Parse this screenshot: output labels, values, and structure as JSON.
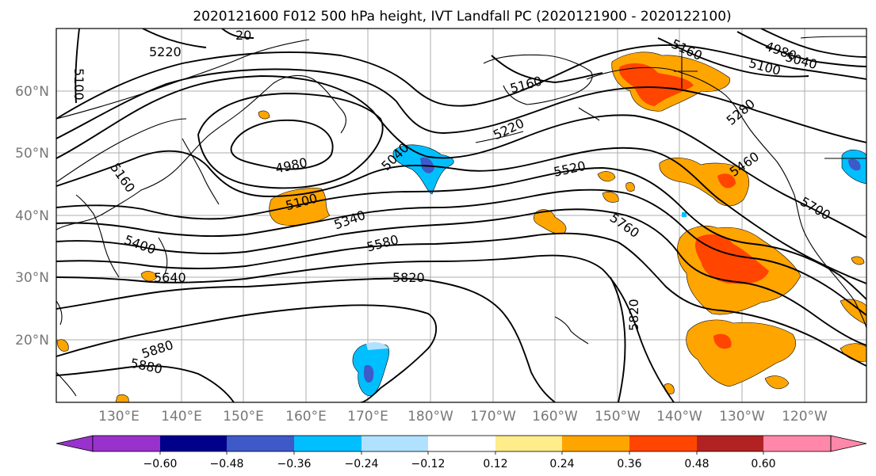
{
  "title": "2020121600 F012 500 hPa height, IVT Landfall PC (2020121900 - 2020122100)",
  "map": {
    "lon_ticks": [
      "130°E",
      "140°E",
      "150°E",
      "160°E",
      "170°E",
      "180°W",
      "170°W",
      "160°W",
      "150°W",
      "140°W",
      "130°W",
      "120°W"
    ],
    "lat_ticks": [
      "60°N",
      "50°N",
      "40°N",
      "30°N",
      "20°N"
    ],
    "contour_labels": [
      "5220",
      "5100",
      "5160",
      "4980",
      "5100",
      "5040",
      "5160",
      "5220",
      "5520",
      "5340",
      "5400",
      "5580",
      "5640",
      "5820",
      "5880",
      "5880",
      "5760",
      "5820",
      "5460",
      "5280",
      "5160",
      "5100",
      "5040",
      "4980",
      "5700",
      "20"
    ],
    "colors": {
      "neg_max": "#9932cc",
      "neg_dark": "#00008b",
      "neg_mid": "#3d5ac8",
      "neg_light": "#00bfff",
      "neg_pale": "#b0e2ff",
      "pos_pale": "#ffec8b",
      "pos_orange": "#ffa500",
      "pos_red": "#ff4500",
      "pos_dark": "#b22222",
      "pos_max": "#ff88aa"
    }
  },
  "colorbar": {
    "ticks": [
      "−0.60",
      "−0.48",
      "−0.36",
      "−0.24",
      "−0.12",
      "0.12",
      "0.24",
      "0.36",
      "0.48",
      "0.60"
    ],
    "colors": [
      "#9932cc",
      "#00008b",
      "#3d5ac8",
      "#00bfff",
      "#b0e2ff",
      "#ffffff",
      "#ffec8b",
      "#ffa500",
      "#ff4500",
      "#b22222",
      "#ff88aa"
    ]
  }
}
